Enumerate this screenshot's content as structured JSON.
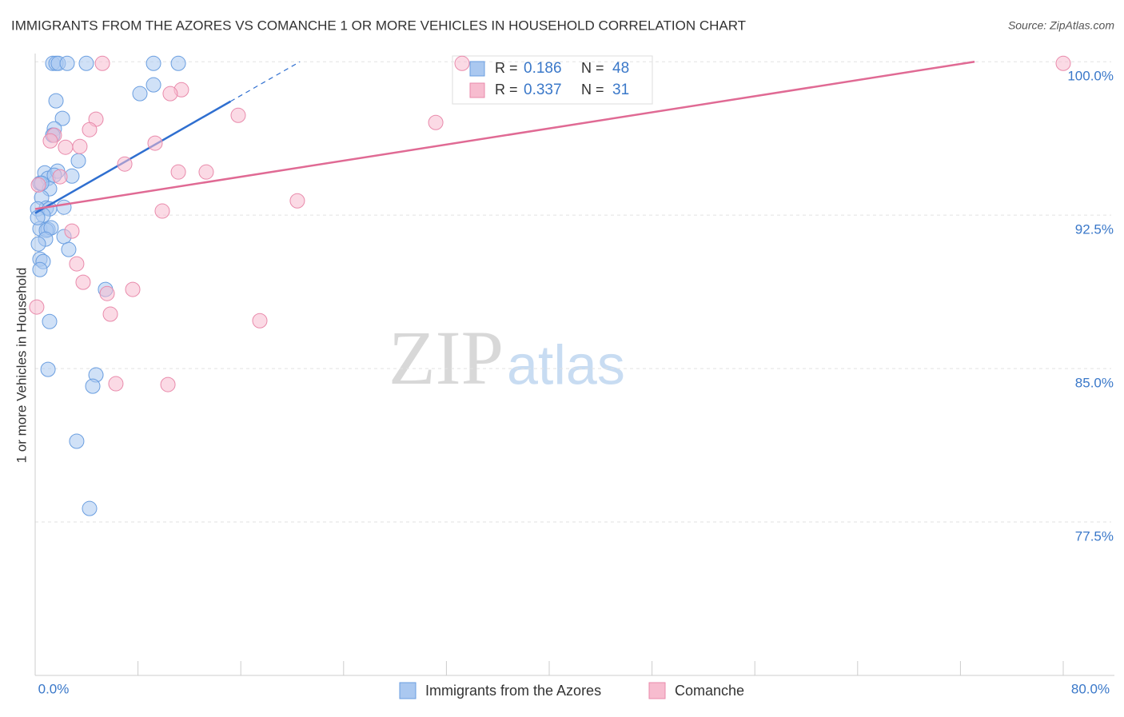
{
  "chart_data": {
    "type": "scatter",
    "title": "IMMIGRANTS FROM THE AZORES VS COMANCHE 1 OR MORE VEHICLES IN HOUSEHOLD CORRELATION CHART",
    "source": "Source: ZipAtlas.com",
    "y_label": "1 or more Vehicles in Household",
    "watermark": [
      "ZIP",
      "atlas"
    ],
    "legend_labels": {
      "r": "R =",
      "n": "N ="
    },
    "xlim": [
      0,
      80
    ],
    "ylim": [
      70,
      100.4
    ],
    "xticks": [
      {
        "value": 0,
        "label": "0.0%"
      },
      {
        "value": 8,
        "label": null
      },
      {
        "value": 16,
        "label": null
      },
      {
        "value": 24,
        "label": null
      },
      {
        "value": 32,
        "label": null
      },
      {
        "value": 40,
        "label": null
      },
      {
        "value": 48,
        "label": null
      },
      {
        "value": 56,
        "label": null
      },
      {
        "value": 64,
        "label": null
      },
      {
        "value": 72,
        "label": null
      },
      {
        "value": 80,
        "label": "80.0%"
      }
    ],
    "yticks": [
      {
        "value": 100,
        "label": "100.0%"
      },
      {
        "value": 92.5,
        "label": "92.5%"
      },
      {
        "value": 85,
        "label": "85.0%"
      },
      {
        "value": 77.5,
        "label": "77.5%"
      }
    ],
    "grid": true,
    "series": [
      {
        "name": "Immigrants from the Azores",
        "color": "#6a9ee0",
        "fill": "#aac8f0",
        "line_color": "#2f6fd0",
        "r": 0.186,
        "n": 48,
        "trend": {
          "x": [
            0,
            20.6
          ],
          "y": [
            92.6,
            100
          ],
          "solid_to": 15.2
        },
        "x": [
          1.37,
          1.62,
          1.8,
          2.49,
          3.98,
          9.21,
          11.14,
          9.21,
          8.15,
          1.62,
          2.12,
          1.49,
          1.37,
          0.75,
          3.36,
          1.0,
          1.74,
          2.86,
          1.49,
          0.37,
          1.12,
          0.5,
          0.87,
          0.19,
          1.12,
          2.24,
          0.62,
          0.37,
          1.0,
          0.87,
          1.24,
          0.81,
          2.24,
          0.25,
          2.61,
          0.37,
          0.62,
          0.37,
          5.47,
          1.12,
          1.0,
          4.73,
          4.48,
          3.23,
          4.23,
          1.37,
          0.5,
          0.19
        ],
        "values": [
          99.92,
          99.92,
          99.92,
          99.92,
          99.92,
          99.92,
          99.92,
          98.87,
          98.44,
          98.09,
          97.23,
          96.72,
          96.41,
          94.57,
          95.16,
          94.3,
          94.65,
          94.41,
          94.45,
          94.06,
          93.79,
          93.36,
          92.85,
          92.81,
          92.81,
          92.89,
          92.5,
          91.84,
          91.8,
          91.76,
          91.88,
          91.33,
          91.45,
          91.09,
          90.82,
          90.35,
          90.23,
          89.84,
          88.87,
          87.3,
          84.96,
          84.69,
          84.14,
          81.45,
          78.16,
          96.41,
          94.06,
          92.38
        ]
      },
      {
        "name": "Comanche",
        "color": "#e98aab",
        "fill": "#f7bccf",
        "line_color": "#e06a94",
        "r": 0.337,
        "n": 31,
        "trend": {
          "x": [
            0,
            73.1
          ],
          "y": [
            92.8,
            100
          ],
          "solid_to": 73.1
        },
        "x": [
          33.22,
          80,
          5.23,
          11.38,
          10.51,
          15.8,
          4.73,
          4.23,
          1.49,
          1.18,
          3.48,
          2.36,
          31.17,
          9.33,
          6.97,
          11.14,
          13.31,
          1.93,
          0.25,
          20.4,
          9.89,
          2.86,
          3.23,
          3.73,
          7.59,
          5.6,
          5.85,
          17.48,
          0.12,
          6.28,
          10.33
        ],
        "values": [
          99.92,
          99.92,
          99.92,
          98.63,
          98.44,
          97.38,
          97.19,
          96.68,
          96.41,
          96.13,
          95.86,
          95.82,
          97.03,
          96.02,
          95.0,
          94.61,
          94.61,
          94.38,
          93.98,
          93.2,
          92.7,
          91.72,
          90.12,
          89.22,
          88.87,
          88.67,
          87.66,
          87.34,
          88.01,
          84.26,
          84.22
        ]
      }
    ]
  }
}
